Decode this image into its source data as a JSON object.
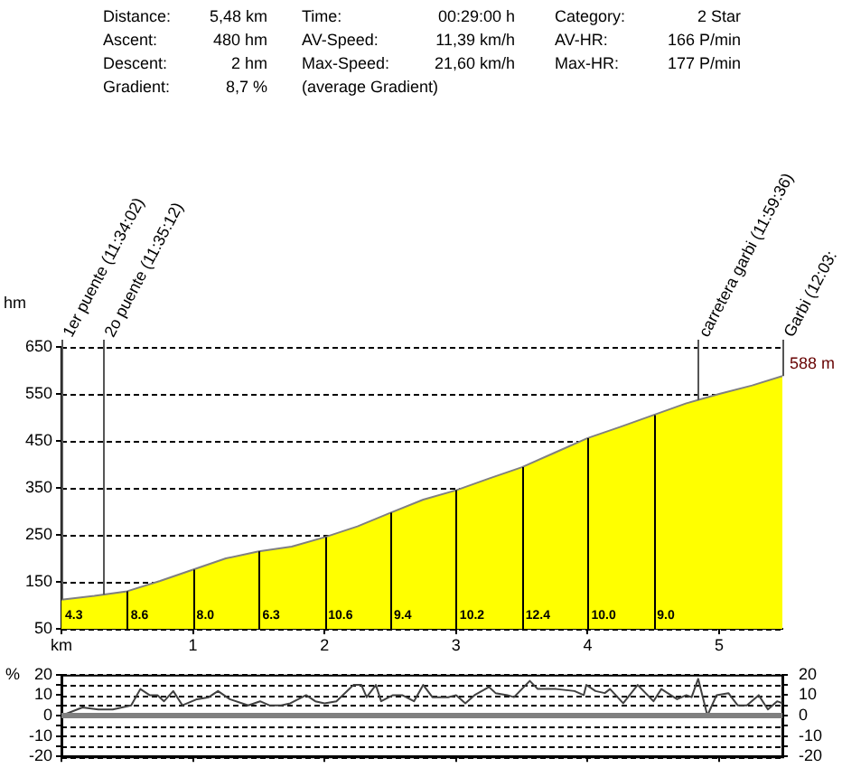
{
  "chart_data": [
    {
      "type": "area",
      "ylabel": "hm",
      "color": "#ffff00",
      "annotations": [
        "Distance:",
        "5,48 km",
        "Time:",
        "00:29:00 h",
        "Category:",
        "2 Star",
        "Ascent:",
        "480 hm",
        "AV-Speed:",
        "11,39 km/h",
        "AV-HR:",
        "166 P/min",
        "Descent:",
        "2 hm",
        "Max-Speed:",
        "21,60 km/h",
        "Max-HR:",
        "177 P/min",
        "Gradient:",
        "8,7 %",
        "(average Gradient)",
        {
          "text": "588 m",
          "x": 5.48,
          "y": 588
        },
        {
          "text": "1er puente (11:34:02)",
          "x": 0,
          "y": 650
        },
        {
          "text": "2o puente (11:35:12)",
          "x": 0.32,
          "y": 650
        },
        {
          "text": "carretera garbi (11:59:36)",
          "x": 4.84,
          "y": 650
        },
        {
          "text": "Garbi (12:03:",
          "x": 5.48,
          "y": 650
        },
        {
          "text": "4.3",
          "x": 0,
          "y": 50
        },
        {
          "text": "8.6",
          "x": 0.5,
          "y": 50
        },
        {
          "text": "8.0",
          "x": 1,
          "y": 50
        },
        {
          "text": "6.3",
          "x": 1.5,
          "y": 50
        },
        {
          "text": "10.6",
          "x": 2,
          "y": 50
        },
        {
          "text": "9.4",
          "x": 2.5,
          "y": 50
        },
        {
          "text": "10.2",
          "x": 3,
          "y": 50
        },
        {
          "text": "12.4",
          "x": 3.5,
          "y": 50
        },
        {
          "text": "10.0",
          "x": 4,
          "y": 50
        },
        {
          "text": "9.0",
          "x": 4.5,
          "y": 50
        }
      ],
      "x": [
        0,
        0.25,
        0.5,
        0.75,
        1,
        1.25,
        1.5,
        1.75,
        2,
        2.25,
        2.5,
        2.75,
        3,
        3.25,
        3.5,
        3.75,
        4,
        4.25,
        4.5,
        4.75,
        5,
        5.25,
        5.48
      ],
      "values": [
        112,
        120,
        130,
        152,
        176,
        200,
        215,
        225,
        245,
        268,
        297,
        325,
        345,
        370,
        394,
        425,
        456,
        480,
        505,
        530,
        550,
        568,
        588
      ],
      "xlim": [
        0,
        5.48
      ],
      "xticks": [
        {
          "value": 0,
          "label": "km"
        },
        1,
        2,
        3,
        4,
        5
      ],
      "ylim": [
        50,
        650
      ],
      "yticks": [
        50,
        150,
        250,
        350,
        450,
        550,
        650
      ],
      "grid": "y",
      "ref_lines": [
        {
          "axis": "x",
          "value": 0
        },
        {
          "axis": "x",
          "value": 0.32
        },
        {
          "axis": "x",
          "value": 4.84
        },
        {
          "axis": "x",
          "value": 5.48
        }
      ]
    },
    {
      "type": "line",
      "ylabel": "%",
      "color": "#404040",
      "x": [
        0,
        0.16,
        0.28,
        0.39,
        0.53,
        0.6,
        0.67,
        0.73,
        0.78,
        0.85,
        0.92,
        1.03,
        1.12,
        1.19,
        1.28,
        1.42,
        1.51,
        1.58,
        1.67,
        1.74,
        1.86,
        1.93,
        2.0,
        2.09,
        2.22,
        2.28,
        2.32,
        2.39,
        2.43,
        2.52,
        2.59,
        2.68,
        2.75,
        2.82,
        2.94,
        3.0,
        3.07,
        3.14,
        3.25,
        3.3,
        3.39,
        3.44,
        3.56,
        3.62,
        3.76,
        3.9,
        3.97,
        3.99,
        4.06,
        4.13,
        4.17,
        4.27,
        4.38,
        4.5,
        4.56,
        4.68,
        4.75,
        4.79,
        4.84,
        4.91,
        4.98,
        5.07,
        5.14,
        5.21,
        5.3,
        5.37,
        5.44,
        5.48
      ],
      "values": [
        0,
        4,
        3,
        3,
        5,
        13,
        10,
        10,
        7,
        12,
        5,
        8,
        9,
        12,
        8,
        5,
        7,
        5,
        5,
        6,
        10,
        7,
        6,
        7,
        15,
        15,
        9,
        15,
        7,
        10,
        10,
        7,
        15,
        9,
        9,
        10,
        6,
        10,
        14,
        11,
        10,
        9,
        17,
        13,
        13,
        12,
        10,
        15,
        12,
        11,
        13,
        6,
        15,
        7,
        13,
        8,
        10,
        9,
        18,
        0,
        10,
        11,
        5,
        5,
        10,
        3,
        7,
        6
      ],
      "xlim": [
        0,
        5.48
      ],
      "xticks": [
        0,
        1,
        2,
        3,
        4,
        5
      ],
      "tick_labels": "y",
      "ylim": [
        -20,
        20
      ],
      "yticks": [
        -20,
        {
          "value": -15,
          "label": null
        },
        -10,
        {
          "value": -5,
          "label": null
        },
        0,
        {
          "value": 5,
          "label": null
        },
        10,
        {
          "value": 15,
          "label": null
        },
        20
      ],
      "y2lim": [
        -20,
        20
      ],
      "y2ticks": [
        -20,
        {
          "value": -15,
          "label": null
        },
        -10,
        {
          "value": -5,
          "label": null
        },
        0,
        {
          "value": 5,
          "label": null
        },
        10,
        {
          "value": 15,
          "label": null
        },
        20
      ],
      "grid": "y",
      "ref_lines": [
        {
          "axis": "y",
          "value": 0,
          "color": "#808080"
        }
      ]
    }
  ]
}
